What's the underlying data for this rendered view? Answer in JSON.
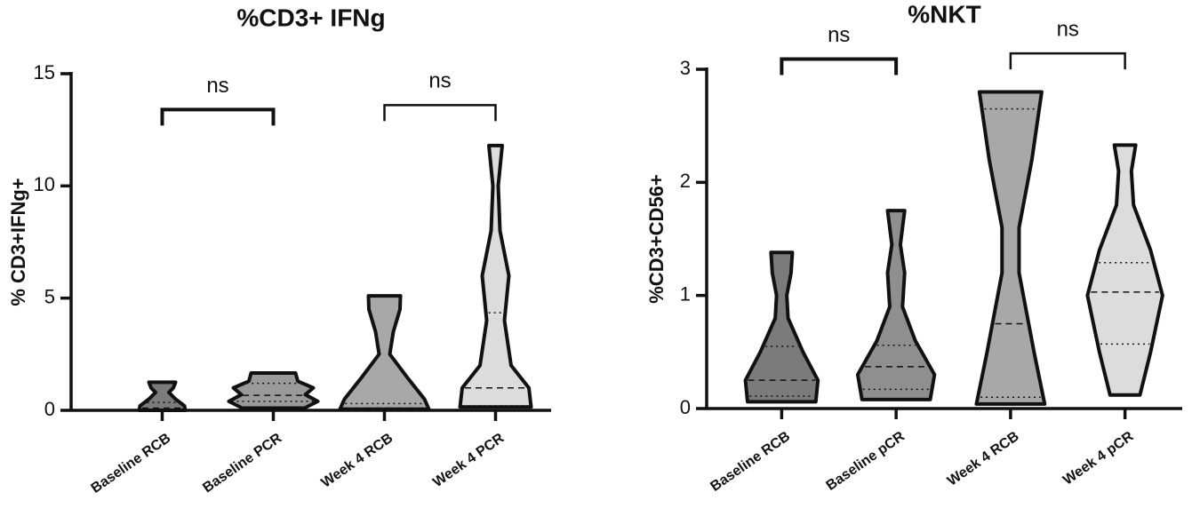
{
  "chart_data": [
    {
      "type": "violin",
      "title": "%CD3+ IFNg",
      "y_label": "% CD3+IFNg+",
      "categories": [
        "Baseline RCB",
        "Baseline PCR",
        "Week 4 RCB",
        "Week 4 PCR"
      ],
      "ylim": [
        0,
        15
      ],
      "yticks": [
        0,
        5,
        10,
        15
      ],
      "groups": [
        {
          "color": "#7b7b7b",
          "outline": [
            [
              0,
              0.52
            ],
            [
              0.2,
              0.5
            ],
            [
              0.5,
              0.3
            ],
            [
              0.8,
              0.15
            ],
            [
              1.0,
              0.25
            ],
            [
              1.25,
              0.3
            ]
          ],
          "q1": 0.03,
          "median": 0.1,
          "q3": 0.35
        },
        {
          "color": "#9a9a9a",
          "outline": [
            [
              0.1,
              0.7
            ],
            [
              0.4,
              1.0
            ],
            [
              0.7,
              0.72
            ],
            [
              1.0,
              0.9
            ],
            [
              1.3,
              0.55
            ],
            [
              1.66,
              0.5
            ]
          ],
          "q1": 0.4,
          "median": 0.67,
          "q3": 1.2
        },
        {
          "color": "#a8a8a8",
          "outline": [
            [
              0.05,
              1.0
            ],
            [
              0.5,
              0.9
            ],
            [
              1.5,
              0.5
            ],
            [
              2.5,
              0.12
            ],
            [
              3.5,
              0.2
            ],
            [
              4.5,
              0.35
            ],
            [
              5.1,
              0.36
            ]
          ],
          "q1": 0.05,
          "median": 0.1,
          "q3": 0.3
        },
        {
          "color": "#dcdcdc",
          "outline": [
            [
              0.15,
              0.8
            ],
            [
              1.0,
              0.75
            ],
            [
              2.0,
              0.35
            ],
            [
              4.0,
              0.2
            ],
            [
              6.0,
              0.3
            ],
            [
              8.0,
              0.1
            ],
            [
              10.0,
              0.06
            ],
            [
              11.8,
              0.15
            ]
          ],
          "q1": 0.2,
          "median": 1.0,
          "q3": 4.35
        }
      ],
      "comparisons": [
        {
          "from": 0,
          "to": 1,
          "label": "ns",
          "y": 13.4
        },
        {
          "from": 2,
          "to": 3,
          "label": "ns",
          "y": 13.6
        }
      ]
    },
    {
      "type": "violin",
      "title": "%NKT",
      "y_label": "%CD3+CD56+",
      "categories": [
        "Baseline RCB",
        "Baseline pCR",
        "Week 4 RCB",
        "Week 4 pCR"
      ],
      "ylim": [
        0,
        3
      ],
      "yticks": [
        0,
        1,
        2,
        3
      ],
      "groups": [
        {
          "color": "#7b7b7b",
          "outline": [
            [
              0.06,
              0.8
            ],
            [
              0.25,
              0.85
            ],
            [
              0.5,
              0.5
            ],
            [
              0.8,
              0.15
            ],
            [
              1.0,
              0.12
            ],
            [
              1.2,
              0.22
            ],
            [
              1.38,
              0.25
            ]
          ],
          "q1": 0.11,
          "median": 0.25,
          "q3": 0.55
        },
        {
          "color": "#8f8f8f",
          "outline": [
            [
              0.08,
              0.8
            ],
            [
              0.3,
              0.9
            ],
            [
              0.6,
              0.45
            ],
            [
              0.9,
              0.15
            ],
            [
              1.2,
              0.2
            ],
            [
              1.45,
              0.1
            ],
            [
              1.75,
              0.2
            ]
          ],
          "q1": 0.17,
          "median": 0.37,
          "q3": 0.56
        },
        {
          "color": "#a8a8a8",
          "outline": [
            [
              0.04,
              0.8
            ],
            [
              0.5,
              0.55
            ],
            [
              1.2,
              0.2
            ],
            [
              1.6,
              0.2
            ],
            [
              2.2,
              0.5
            ],
            [
              2.8,
              0.73
            ]
          ],
          "q1": 0.1,
          "median": 0.75,
          "q3": 2.65
        },
        {
          "color": "#dcdcdc",
          "outline": [
            [
              0.12,
              0.35
            ],
            [
              0.5,
              0.6
            ],
            [
              1.0,
              0.88
            ],
            [
              1.4,
              0.6
            ],
            [
              1.8,
              0.2
            ],
            [
              2.1,
              0.15
            ],
            [
              2.33,
              0.25
            ]
          ],
          "q1": 0.57,
          "median": 1.03,
          "q3": 1.29
        }
      ],
      "comparisons": [
        {
          "from": 0,
          "to": 1,
          "label": "ns",
          "y": 3.09
        },
        {
          "from": 2,
          "to": 3,
          "label": "ns",
          "y": 3.14
        }
      ]
    }
  ]
}
